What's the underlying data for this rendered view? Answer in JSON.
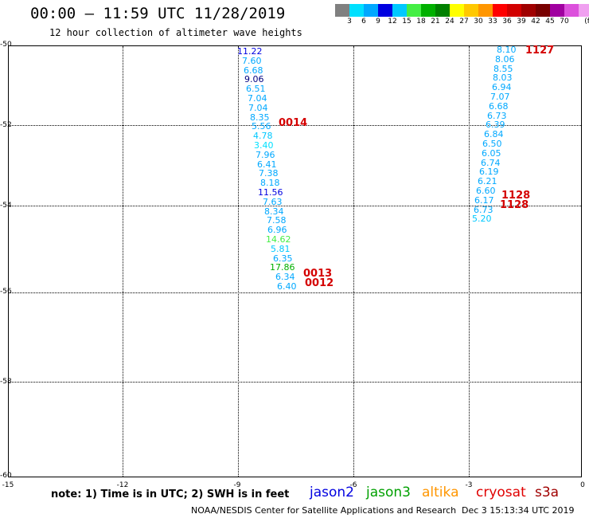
{
  "title": "00:00 — 11:59 UTC 11/28/2019",
  "subtitle": "12 hour collection of altimeter wave heights",
  "legend": {
    "colors": [
      "#808080",
      "#00e0ff",
      "#00a8ff",
      "#0000e0",
      "#00c8ff",
      "#44ee44",
      "#00b000",
      "#008000",
      "#ffff00",
      "#ffc800",
      "#ff9600",
      "#ff0000",
      "#d20000",
      "#a00000",
      "#780000",
      "#a000a0",
      "#dc50dc",
      "#f0a0f0",
      "#000000"
    ],
    "labels": [
      "3",
      "6",
      "9",
      "12",
      "15",
      "18",
      "21",
      "24",
      "27",
      "30",
      "33",
      "36",
      "39",
      "42",
      "45",
      "70"
    ],
    "unit": "(ft)"
  },
  "axes": {
    "y_labels": [
      "-50",
      "-52",
      "-54",
      "-56",
      "-58",
      "-60"
    ],
    "x_labels": [
      "-15",
      "-12",
      "-9",
      "-6",
      "-3",
      "0"
    ]
  },
  "tracks": {
    "left": [
      "11.22",
      "7.60",
      "6.68",
      "9.06",
      "6.51",
      "7.04",
      "7.04",
      "8.35",
      "5.56",
      "4.78",
      "3.40",
      "7.96",
      "6.41",
      "7.38",
      "8.18",
      "11.56",
      "7.63",
      "8.34",
      "7.58",
      "6.96",
      "14.62",
      "5.81",
      "6.35",
      "17.86",
      "6.34",
      "6.40"
    ],
    "left_colors": [
      "#0000e0",
      "#00a8ff",
      "#00a8ff",
      "#000080",
      "#00a8ff",
      "#00a8ff",
      "#00a8ff",
      "#00a8ff",
      "#00a8ff",
      "#00c8ff",
      "#00e0ff",
      "#00a8ff",
      "#00a8ff",
      "#00a8ff",
      "#00a8ff",
      "#0000e0",
      "#00a8ff",
      "#00a8ff",
      "#00a8ff",
      "#00a8ff",
      "#44ee44",
      "#00c8ff",
      "#00a8ff",
      "#00b000",
      "#00a8ff",
      "#00a8ff"
    ],
    "right": [
      "8.10",
      "8.06",
      "8.55",
      "8.03",
      "6.94",
      "7.07",
      "6.68",
      "6.73",
      "6.39",
      "6.84",
      "6.50",
      "6.05",
      "6.74",
      "6.19",
      "6.21",
      "6.60",
      "6.17",
      "6.73",
      "5.20"
    ],
    "right_colors": [
      "#00a8ff",
      "#00a8ff",
      "#00a8ff",
      "#00a8ff",
      "#00a8ff",
      "#00a8ff",
      "#00a8ff",
      "#00a8ff",
      "#00a8ff",
      "#00a8ff",
      "#00a8ff",
      "#00a8ff",
      "#00a8ff",
      "#00a8ff",
      "#00a8ff",
      "#00a8ff",
      "#00a8ff",
      "#00a8ff",
      "#00c8ff"
    ]
  },
  "time_labels": {
    "t1127": "1127",
    "t0014": "0014",
    "t1128a": "1128",
    "t1128b": "1128",
    "t0013": "0013",
    "t0012": "0012"
  },
  "note": "note: 1) Time is in UTC; 2) SWH is in feet",
  "satellites": [
    {
      "name": "jason2",
      "color": "#0000e0"
    },
    {
      "name": "jason3",
      "color": "#00a000"
    },
    {
      "name": "altika",
      "color": "#ff9600"
    },
    {
      "name": "cryosat",
      "color": "#e00000"
    },
    {
      "name": "s3a",
      "color": "#a00000"
    }
  ],
  "footer": "NOAA/NESDIS Center for Satellite Applications and Research",
  "footer_date": "Dec  3 15:13:34 UTC 2019"
}
